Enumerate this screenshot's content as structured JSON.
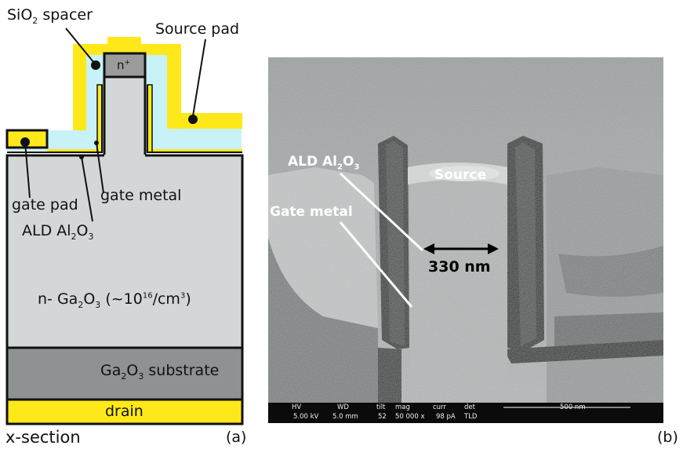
{
  "panel_a": {
    "labels": {
      "sio2_spacer": "SiO",
      "sio2_sub": "2",
      "sio2_tail": " spacer",
      "source_pad": "Source pad",
      "n_plus": "n",
      "n_plus_sup": "+",
      "gate_pad": "gate pad",
      "gate_metal": "gate metal",
      "ald_pre": "ALD Al",
      "ald_sub1": "2",
      "ald_mid": "O",
      "ald_sub2": "3",
      "drift_pre": "n- Ga",
      "drift_sub1": "2",
      "drift_mid": "O",
      "drift_sub2": "3",
      "drift_doping_pre": " (~10",
      "drift_doping_sup": "16",
      "drift_doping_mid": "/cm",
      "drift_doping_sup2": "3",
      "drift_doping_end": ")",
      "substrate_pre": "Ga",
      "substrate_sub1": "2",
      "substrate_mid": "O",
      "substrate_sub2": "3",
      "substrate_end": " substrate",
      "drain": "drain",
      "xsection": "x-section",
      "tag": "(a)"
    },
    "colors": {
      "metal": "#ffe81a",
      "oxide": "#c8f2f8",
      "drift": "#d4d7d8",
      "substrate": "#8e9292",
      "nplus": "#9b9b9b",
      "outline": "#111111"
    }
  },
  "panel_b": {
    "labels": {
      "ald_pre": "ALD Al",
      "ald_sub1": "2",
      "ald_mid": "O",
      "ald_sub2": "3",
      "source": "Source",
      "gate_metal": "Gate metal",
      "width": "330 nm",
      "tag": "(b)"
    },
    "info_bar": {
      "hv_label": "HV",
      "hv_value": "5.00 kV",
      "wd_label": "WD",
      "wd_value": "5.0 mm",
      "tilt_label": "tilt",
      "tilt_value": "52",
      "mag_label": "mag",
      "mag_value": "50 000 x",
      "curr_label": "curr",
      "curr_value": "98 pA",
      "det_label": "det",
      "det_value": "TLD",
      "scale_label": "500 nm"
    }
  }
}
